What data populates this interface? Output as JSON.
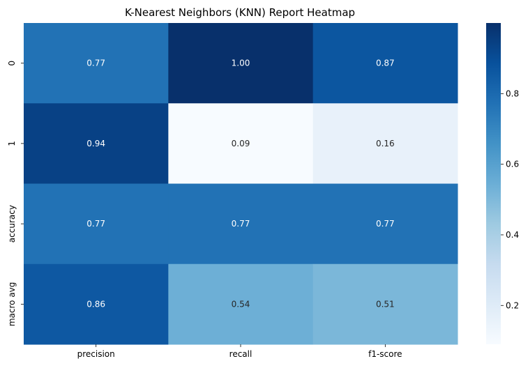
{
  "chart_data": {
    "type": "heatmap",
    "title": "K-Nearest Neighbors (KNN) Report Heatmap",
    "xlabel": "",
    "ylabel": "",
    "columns": [
      "precision",
      "recall",
      "f1-score"
    ],
    "rows": [
      "0",
      "1",
      "accuracy",
      "macro avg"
    ],
    "values": [
      [
        0.77,
        1.0,
        0.87
      ],
      [
        0.94,
        0.09,
        0.16
      ],
      [
        0.77,
        0.77,
        0.77
      ],
      [
        0.86,
        0.54,
        0.51
      ]
    ],
    "value_labels": [
      [
        "0.77",
        "1.00",
        "0.87"
      ],
      [
        "0.94",
        "0.09",
        "0.16"
      ],
      [
        "0.77",
        "0.77",
        "0.77"
      ],
      [
        "0.86",
        "0.54",
        "0.51"
      ]
    ],
    "colormap": "Blues",
    "vmin": 0.09,
    "vmax": 1.0,
    "colorbar_ticks": [
      "0.2",
      "0.4",
      "0.6",
      "0.8"
    ],
    "colorbar_tick_values": [
      0.2,
      0.4,
      0.6,
      0.8
    ],
    "grid": false,
    "legend": "colorbar-right"
  }
}
